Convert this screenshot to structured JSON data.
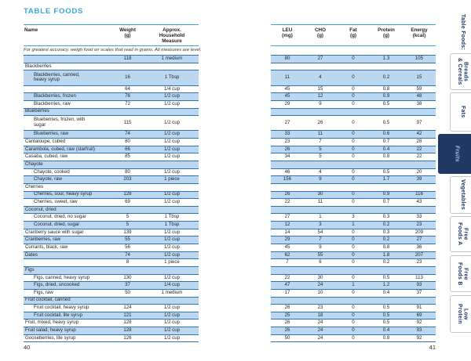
{
  "title": "TABLE FOODS",
  "left_table": {
    "headers": {
      "name": "Name",
      "weight": "Weight\n(g)",
      "measure": "Approx.\nHousehold\nMeasure"
    },
    "note": "For greatest accuracy, weigh food on scales that read in grams.  All measures are level.",
    "page_number": "40"
  },
  "right_table": {
    "headers": [
      {
        "id": "leu",
        "label": "LEU\n(mg)"
      },
      {
        "id": "cho",
        "label": "CHO\n(g)"
      },
      {
        "id": "fat",
        "label": "Fat\n(g)"
      },
      {
        "id": "protein",
        "label": "Protein\n(g)"
      },
      {
        "id": "energy",
        "label": "Energy\n(kcal)"
      }
    ],
    "page_number": "41"
  },
  "rows": [
    {
      "name": "",
      "indent": 0,
      "tall": false,
      "weight": "118",
      "measure": "1 medium",
      "leu": "80",
      "cho": "27",
      "fat": "0",
      "protein": "1.3",
      "energy": "105"
    },
    {
      "name": "Blackberries",
      "indent": 0,
      "tall": false,
      "weight": "",
      "measure": "",
      "leu": "",
      "cho": "",
      "fat": "",
      "protein": "",
      "energy": ""
    },
    {
      "name": "Blackberries, canned,\nheavy syrup",
      "indent": 1,
      "tall": true,
      "weight": "16",
      "measure": "1 Tbsp",
      "leu": "11",
      "cho": "4",
      "fat": "0",
      "protein": "0.2",
      "energy": "15"
    },
    {
      "name": "",
      "indent": 0,
      "tall": false,
      "weight": "64",
      "measure": "1/4 cup",
      "leu": "45",
      "cho": "15",
      "fat": "0",
      "protein": "0.8",
      "energy": "59"
    },
    {
      "name": "Blackberries, frozen",
      "indent": 1,
      "tall": false,
      "weight": "76",
      "measure": "1/2 cup",
      "leu": "45",
      "cho": "12",
      "fat": "0",
      "protein": "0.9",
      "energy": "48"
    },
    {
      "name": "Blackberries, raw",
      "indent": 1,
      "tall": false,
      "weight": "72",
      "measure": "1/2 cup",
      "leu": "29",
      "cho": "9",
      "fat": "0",
      "protein": "0.5",
      "energy": "38"
    },
    {
      "name": "Blueberries",
      "indent": 0,
      "tall": false,
      "weight": "",
      "measure": "",
      "leu": "",
      "cho": "",
      "fat": "",
      "protein": "",
      "energy": ""
    },
    {
      "name": "Blueberries, frozen, with\nsugar",
      "indent": 1,
      "tall": true,
      "weight": "115",
      "measure": "1/2 cup",
      "leu": "27",
      "cho": "26",
      "fat": "0",
      "protein": "0.5",
      "energy": "97"
    },
    {
      "name": "Blueberries, raw",
      "indent": 1,
      "tall": false,
      "weight": "74",
      "measure": "1/2 cup",
      "leu": "33",
      "cho": "11",
      "fat": "0",
      "protein": "0.6",
      "energy": "42"
    },
    {
      "name": "Cantaloupe, cubed",
      "indent": 0,
      "tall": false,
      "weight": "80",
      "measure": "1/2 cup",
      "leu": "23",
      "cho": "7",
      "fat": "0",
      "protein": "0.7",
      "energy": "28"
    },
    {
      "name": "Carambola, cubed, raw (starfruit)",
      "indent": 0,
      "tall": false,
      "weight": "66",
      "measure": "1/2 cup",
      "leu": "26",
      "cho": "5",
      "fat": "0",
      "protein": "0.4",
      "energy": "22"
    },
    {
      "name": "Casaba, cubed, raw",
      "indent": 0,
      "tall": false,
      "weight": "85",
      "measure": "1/2 cup",
      "leu": "34",
      "cho": "5",
      "fat": "0",
      "protein": "0.8",
      "energy": "22"
    },
    {
      "name": "Chayote",
      "indent": 0,
      "tall": false,
      "weight": "",
      "measure": "",
      "leu": "",
      "cho": "",
      "fat": "",
      "protein": "",
      "energy": ""
    },
    {
      "name": "Chayote, cooked",
      "indent": 1,
      "tall": false,
      "weight": "80",
      "measure": "1/2 cup",
      "leu": "46",
      "cho": "4",
      "fat": "0",
      "protein": "0.5",
      "energy": "20"
    },
    {
      "name": "Chayote, raw",
      "indent": 1,
      "tall": false,
      "weight": "203",
      "measure": "1 piece",
      "leu": "156",
      "cho": "9",
      "fat": "0",
      "protein": "1.7",
      "energy": "39"
    },
    {
      "name": "Cherries",
      "indent": 0,
      "tall": false,
      "weight": "",
      "measure": "",
      "leu": "",
      "cho": "",
      "fat": "",
      "protein": "",
      "energy": ""
    },
    {
      "name": "Cherries, sour, heavy syrup",
      "indent": 1,
      "tall": false,
      "weight": "128",
      "measure": "1/2 cup",
      "leu": "26",
      "cho": "30",
      "fat": "0",
      "protein": "0.9",
      "energy": "116"
    },
    {
      "name": "Cherries, sweet, raw",
      "indent": 1,
      "tall": false,
      "weight": "69",
      "measure": "1/2 cup",
      "leu": "22",
      "cho": "11",
      "fat": "0",
      "protein": "0.7",
      "energy": "43"
    },
    {
      "name": "Coconut, dried",
      "indent": 0,
      "tall": false,
      "weight": "",
      "measure": "",
      "leu": "",
      "cho": "",
      "fat": "",
      "protein": "",
      "energy": ""
    },
    {
      "name": "Coconut, dried, no sugar",
      "indent": 1,
      "tall": false,
      "weight": "5",
      "measure": "1 Tbsp",
      "leu": "27",
      "cho": "1",
      "fat": "3",
      "protein": "0.3",
      "energy": "33"
    },
    {
      "name": "Coconut, dried, sugar",
      "indent": 1,
      "tall": false,
      "weight": "5",
      "measure": "1 Tbsp",
      "leu": "12",
      "cho": "3",
      "fat": "1",
      "protein": "0.2",
      "energy": "23"
    },
    {
      "name": "Cranberry sauce with sugar",
      "indent": 0,
      "tall": false,
      "weight": "139",
      "measure": "1/2 cup",
      "leu": "14",
      "cho": "54",
      "fat": "0",
      "protein": "0.3",
      "energy": "209"
    },
    {
      "name": "Cranberries, raw",
      "indent": 0,
      "tall": false,
      "weight": "55",
      "measure": "1/2 cup",
      "leu": "29",
      "cho": "7",
      "fat": "0",
      "protein": "0.2",
      "energy": "27"
    },
    {
      "name": "Currants, black, raw",
      "indent": 0,
      "tall": false,
      "weight": "56",
      "measure": "1/2 cup",
      "leu": "45",
      "cho": "9",
      "fat": "0",
      "protein": "0.8",
      "energy": "36"
    },
    {
      "name": "Dates",
      "indent": 0,
      "tall": false,
      "weight": "74",
      "measure": "1/2 cup",
      "leu": "62",
      "cho": "55",
      "fat": "0",
      "protein": "1.8",
      "energy": "207"
    },
    {
      "name": "",
      "indent": 0,
      "tall": false,
      "weight": "8",
      "measure": "1 piece",
      "leu": "7",
      "cho": "6",
      "fat": "0",
      "protein": "0.2",
      "energy": "23"
    },
    {
      "name": "Figs",
      "indent": 0,
      "tall": false,
      "weight": "",
      "measure": "",
      "leu": "",
      "cho": "",
      "fat": "",
      "protein": "",
      "energy": ""
    },
    {
      "name": "Figs, canned, heavy syrup",
      "indent": 1,
      "tall": false,
      "weight": "130",
      "measure": "1/2 cup",
      "leu": "22",
      "cho": "30",
      "fat": "0",
      "protein": "0.5",
      "energy": "113"
    },
    {
      "name": "Figs, dried, uncooked",
      "indent": 1,
      "tall": false,
      "weight": "37",
      "measure": "1/4 cup",
      "leu": "47",
      "cho": "24",
      "fat": "1",
      "protein": "1.2",
      "energy": "93"
    },
    {
      "name": "Figs, raw",
      "indent": 1,
      "tall": false,
      "weight": "50",
      "measure": "1 medium",
      "leu": "17",
      "cho": "10",
      "fat": "0",
      "protein": "0.4",
      "energy": "37"
    },
    {
      "name": "Fruit cocktail, canned",
      "indent": 0,
      "tall": false,
      "weight": "",
      "measure": "",
      "leu": "",
      "cho": "",
      "fat": "",
      "protein": "",
      "energy": ""
    },
    {
      "name": "Fruit cocktail, heavy syrup",
      "indent": 1,
      "tall": false,
      "weight": "124",
      "measure": "1/2 cup",
      "leu": "26",
      "cho": "23",
      "fat": "0",
      "protein": "0.5",
      "energy": "91"
    },
    {
      "name": "Fruit cocktail, lite syrup",
      "indent": 1,
      "tall": false,
      "weight": "121",
      "measure": "1/2 cup",
      "leu": "25",
      "cho": "18",
      "fat": "0",
      "protein": "0.5",
      "energy": "69"
    },
    {
      "name": "Fruit, mixed, heavy syrup",
      "indent": 0,
      "tall": false,
      "weight": "128",
      "measure": "1/2 cup",
      "leu": "26",
      "cho": "24",
      "fat": "0",
      "protein": "0.5",
      "energy": "92"
    },
    {
      "name": "Fruit salad, heavy syrup",
      "indent": 0,
      "tall": false,
      "weight": "128",
      "measure": "1/2 cup",
      "leu": "26",
      "cho": "24",
      "fat": "0",
      "protein": "0.4",
      "energy": "93"
    },
    {
      "name": "Gooseberries, lite syrup",
      "indent": 0,
      "tall": false,
      "weight": "126",
      "measure": "1/2 cup",
      "leu": "50",
      "cho": "24",
      "fat": "0",
      "protein": "0.8",
      "energy": "92"
    }
  ],
  "sidebar": {
    "tabs": [
      {
        "id": "table-foods",
        "label": "Table Foods:",
        "header": true,
        "active": false
      },
      {
        "id": "breads-cereals",
        "label": "Breads\n& Cereals",
        "header": false,
        "active": false
      },
      {
        "id": "fats",
        "label": "Fats",
        "header": false,
        "active": false
      },
      {
        "id": "fruits",
        "label": "Fruits",
        "header": false,
        "active": true
      },
      {
        "id": "vegetables",
        "label": "Vegetables",
        "header": false,
        "active": false
      },
      {
        "id": "free-foods-a",
        "label": "Free\nFoods A",
        "header": false,
        "active": false
      },
      {
        "id": "free-foods-b",
        "label": "Free\nFoods B",
        "header": false,
        "active": false
      },
      {
        "id": "low-protein",
        "label": "Low\nProtein",
        "header": false,
        "active": false
      }
    ]
  },
  "colors": {
    "accent_teal": "#35A8D9",
    "row_blue": "#BCD8F0",
    "row_line": "#2E74B5",
    "tab_navy": "#1F3864",
    "active_tab_text": "#A3C4E8",
    "tab_border": "#C6C6C6",
    "text": "#231F20",
    "page_bg": "#FFFFFF"
  }
}
